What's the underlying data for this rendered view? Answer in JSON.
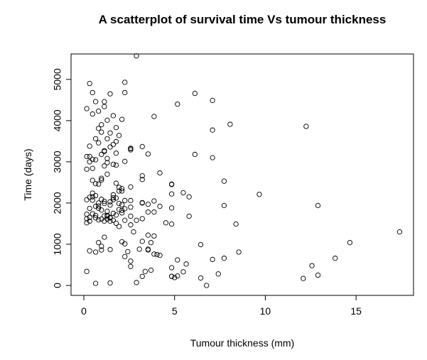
{
  "chart_data": {
    "type": "scatter",
    "title": "A scatterplot of survival time Vs tumour thickness",
    "xlabel": "Tumour thickness (mm)",
    "ylabel": "Time (days)",
    "xlim": [
      0,
      17.5
    ],
    "ylim": [
      0,
      5600
    ],
    "xticks": [
      0,
      5,
      10,
      15
    ],
    "xtick_labels": [
      "0",
      "5",
      "10",
      "15"
    ],
    "yticks": [
      0,
      1000,
      2000,
      3000,
      4000,
      5000
    ],
    "ytick_labels": [
      "0",
      "1000",
      "2000",
      "3000",
      "4000",
      "5000"
    ],
    "grid": false,
    "legend": "none",
    "marker": "open-circle",
    "series": [
      {
        "x": [
          0.16,
          1.29,
          0.65,
          3.87,
          2.58,
          3.22,
          1.78,
          0.48,
          5.8,
          1.62,
          0.32,
          2.1,
          1.94,
          0.81,
          1.13,
          0.97,
          4.84,
          3.54,
          6.76,
          0.32,
          2.58,
          1.29,
          0.81,
          3.22,
          0.16,
          2.26,
          1.45,
          0.48,
          1.78,
          0.65,
          3.22,
          1.13,
          2.1,
          4.19,
          1.45,
          0.97,
          1.62,
          0.81,
          0.32,
          2.26,
          1.94,
          3.54,
          1.29,
          0.65,
          4.84,
          1.13,
          1.45,
          2.58,
          0.48,
          1.78,
          0.97,
          2.1,
          0.16,
          3.87,
          1.29,
          0.65,
          1.62,
          2.26,
          0.32,
          1.13,
          1.45,
          0.81,
          4.84,
          2.58,
          1.94,
          0.48,
          3.22,
          1.78,
          0.97,
          1.29,
          0.16,
          2.1,
          1.62,
          0.65,
          3.54,
          1.13,
          0.32,
          1.45,
          2.58,
          0.81,
          1.78,
          0.97,
          4.19,
          1.29,
          0.48,
          2.26,
          1.62,
          0.16,
          3.22,
          1.13,
          0.65,
          1.94,
          1.45,
          0.32,
          2.58,
          0.81,
          1.78,
          0.97,
          2.1,
          1.29,
          0.48,
          3.87,
          1.62,
          0.16,
          1.13,
          5.16,
          0.65,
          1.45,
          2.26,
          0.32,
          0.81,
          1.78,
          0.97,
          1.29,
          2.58,
          0.48,
          1.62,
          3.22,
          1.13,
          0.65,
          0.16,
          1.94,
          1.45,
          0.81,
          2.1,
          0.97,
          1.29,
          0.32,
          1.78,
          0.48,
          2.58,
          1.62,
          1.13,
          0.65,
          3.54,
          1.45,
          0.81,
          0.16,
          1.94,
          0.97,
          2.9,
          2.26,
          6.12,
          7.09,
          8.06,
          12.25,
          7.09,
          6.12,
          7.09,
          7.73,
          9.67,
          12.9,
          5.48,
          4.84,
          8.38,
          7.73,
          5.8,
          6.44,
          4.84,
          8.54,
          14.66,
          17.4,
          13.85,
          12.57,
          12.9,
          7.09,
          12.09,
          7.41,
          7.73,
          5.16,
          5.48,
          4.52,
          3.87,
          4.19,
          3.54,
          3.22,
          2.9,
          2.58,
          2.26,
          2.42,
          5.64,
          4.84,
          5.0,
          3.38,
          3.06,
          2.74,
          4.03,
          3.7,
          3.7,
          6.44
        ],
        "y": [
          1520,
          1610,
          1700,
          1780,
          1900,
          2010,
          2120,
          2240,
          2150,
          1580,
          1650,
          1760,
          1840,
          1930,
          2040,
          2090,
          1880,
          1970,
          0,
          1560,
          1680,
          1800,
          1590,
          1620,
          1730,
          1860,
          1950,
          2070,
          1710,
          1640,
          2000,
          1690,
          1820,
          1920,
          1560,
          1610,
          1750,
          1870,
          2140,
          2060,
          1990,
          1780,
          1680,
          1920,
          1490,
          1560,
          1640,
          1470,
          1740,
          1510,
          1830,
          1960,
          1620,
          2050,
          1700,
          2180,
          2080,
          1580,
          1870,
          1990,
          1650,
          2000,
          2460,
          2060,
          2380,
          2550,
          2660,
          2480,
          2600,
          2700,
          2820,
          2350,
          2940,
          3050,
          3190,
          3270,
          3130,
          3360,
          3290,
          3460,
          2920,
          3180,
          2730,
          3080,
          2840,
          3010,
          3420,
          3130,
          3370,
          3250,
          3560,
          3640,
          3700,
          3380,
          3330,
          3810,
          3830,
          3900,
          4030,
          4010,
          4160,
          4100,
          4120,
          4290,
          4340,
          4400,
          4460,
          4650,
          4680,
          4900,
          4230,
          3490,
          3720,
          3560,
          2390,
          2150,
          2200,
          2570,
          2900,
          2470,
          2080,
          2290,
          2030,
          2460,
          2290,
          2560,
          2980,
          3000,
          3210,
          3060,
          3320,
          2130,
          1170,
          810,
          1220,
          870,
          1040,
          340,
          1430,
          950,
          1580,
          1010,
          4660,
          4490,
          3910,
          3860,
          3770,
          3180,
          3100,
          1940,
          2210,
          1940,
          2250,
          2220,
          1490,
          2530,
          1680,
          990,
          2450,
          810,
          1040,
          1300,
          660,
          480,
          250,
          630,
          170,
          280,
          660,
          620,
          330,
          1520,
          1200,
          730,
          880,
          1070,
          70,
          460,
          700,
          820,
          520,
          220,
          190,
          340,
          880,
          1300,
          750,
          370,
          1040,
          180
        ],
        "extra_points": [
          {
            "x": 2.9,
            "y": 5570
          },
          {
            "x": 2.26,
            "y": 4930
          },
          {
            "x": 0.48,
            "y": 4680
          },
          {
            "x": 1.13,
            "y": 4460
          },
          {
            "x": 0.65,
            "y": 50
          },
          {
            "x": 1.45,
            "y": 60
          },
          {
            "x": 0.32,
            "y": 840
          },
          {
            "x": 0.97,
            "y": 860
          },
          {
            "x": 3.54,
            "y": 860
          },
          {
            "x": 4.84,
            "y": 430
          },
          {
            "x": 4.84,
            "y": 220
          },
          {
            "x": 5.16,
            "y": 230
          },
          {
            "x": 3.22,
            "y": 220
          },
          {
            "x": 3.87,
            "y": 760
          },
          {
            "x": 2.58,
            "y": 590
          },
          {
            "x": 2.1,
            "y": 1060
          }
        ]
      }
    ]
  }
}
